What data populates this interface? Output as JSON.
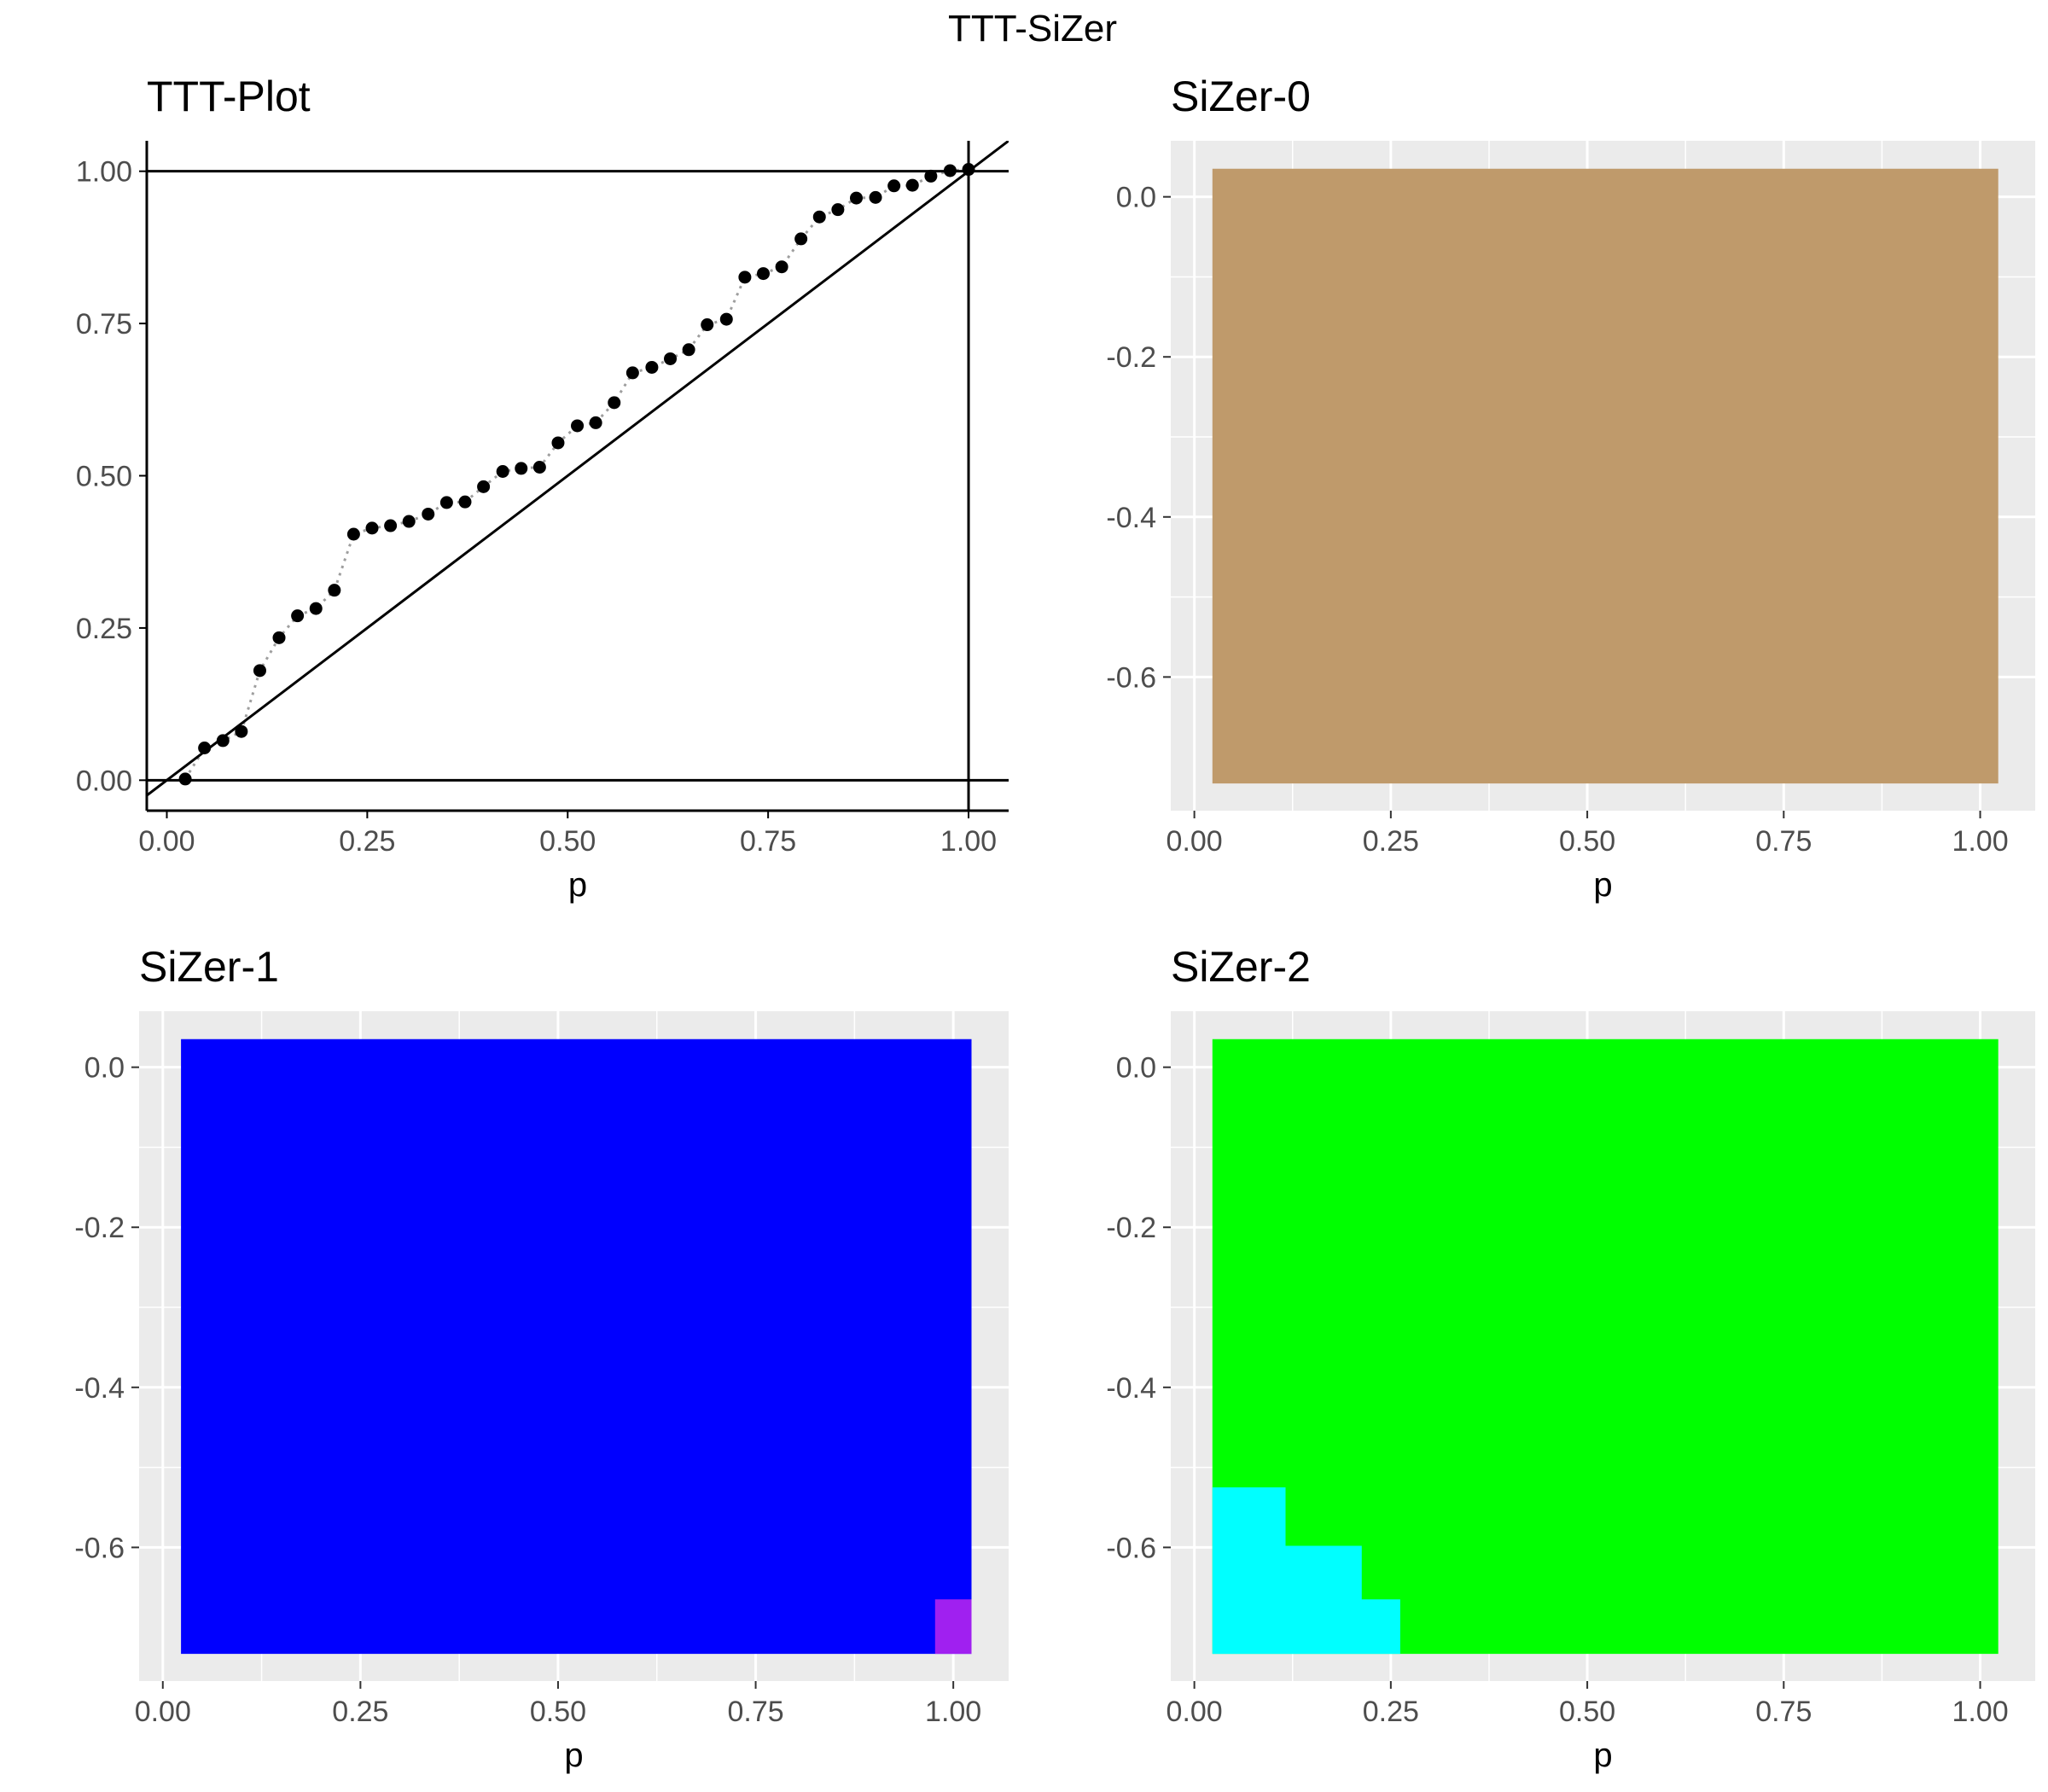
{
  "figure": {
    "title": "TTT-SiZer"
  },
  "colors": {
    "panel_bg": "#ebebeb",
    "grid": "#ffffff",
    "sizer0_fill": "#bf9a6b",
    "sizer1_fill": "#0000ff",
    "sizer1_accent": "#a020f0",
    "sizer2_fill": "#00ff00",
    "sizer2_accent": "#00ffff"
  },
  "chart_data": [
    {
      "id": "ttt",
      "type": "scatter",
      "title": "TTT-Plot",
      "xlabel": "p",
      "ylabel": "",
      "xlim": [
        -0.025,
        1.05
      ],
      "ylim": [
        -0.05,
        1.05
      ],
      "xticks": [
        0,
        0.25,
        0.5,
        0.75,
        1
      ],
      "xtick_labels": [
        "0.00",
        "0.25",
        "0.50",
        "0.75",
        "1.00"
      ],
      "yticks": [
        0,
        0.25,
        0.5,
        0.75,
        1
      ],
      "ytick_labels": [
        "0.00",
        "0.25",
        "0.50",
        "0.75",
        "1.00"
      ],
      "grid": false,
      "reference_lines": {
        "hlines": [
          0,
          1
        ],
        "vlines": [
          1
        ],
        "diagonal": [
          [
            0,
            0
          ],
          [
            1,
            1
          ]
        ]
      },
      "points": [
        [
          0.023,
          0.002
        ],
        [
          0.047,
          0.053
        ],
        [
          0.07,
          0.065
        ],
        [
          0.093,
          0.08
        ],
        [
          0.116,
          0.18
        ],
        [
          0.14,
          0.234
        ],
        [
          0.163,
          0.27
        ],
        [
          0.186,
          0.282
        ],
        [
          0.209,
          0.312
        ],
        [
          0.233,
          0.404
        ],
        [
          0.256,
          0.414
        ],
        [
          0.279,
          0.418
        ],
        [
          0.302,
          0.425
        ],
        [
          0.326,
          0.437
        ],
        [
          0.349,
          0.456
        ],
        [
          0.372,
          0.457
        ],
        [
          0.395,
          0.482
        ],
        [
          0.419,
          0.507
        ],
        [
          0.442,
          0.512
        ],
        [
          0.465,
          0.514
        ],
        [
          0.488,
          0.554
        ],
        [
          0.512,
          0.582
        ],
        [
          0.535,
          0.587
        ],
        [
          0.558,
          0.62
        ],
        [
          0.581,
          0.669
        ],
        [
          0.605,
          0.678
        ],
        [
          0.628,
          0.692
        ],
        [
          0.651,
          0.707
        ],
        [
          0.674,
          0.748
        ],
        [
          0.698,
          0.757
        ],
        [
          0.721,
          0.826
        ],
        [
          0.744,
          0.832
        ],
        [
          0.767,
          0.843
        ],
        [
          0.791,
          0.889
        ],
        [
          0.814,
          0.925
        ],
        [
          0.837,
          0.937
        ],
        [
          0.86,
          0.956
        ],
        [
          0.884,
          0.957
        ],
        [
          0.907,
          0.976
        ],
        [
          0.93,
          0.977
        ],
        [
          0.953,
          0.992
        ],
        [
          0.977,
          1.001
        ],
        [
          1.0,
          1.003
        ]
      ]
    },
    {
      "id": "sizer0",
      "type": "heatmap",
      "title": "SiZer-0",
      "xlabel": "p",
      "ylabel": "",
      "xlim": [
        -0.03,
        1.07
      ],
      "ylim": [
        -0.767,
        0.07
      ],
      "xticks": [
        0,
        0.25,
        0.5,
        0.75,
        1
      ],
      "xtick_labels": [
        "0.00",
        "0.25",
        "0.50",
        "0.75",
        "1.00"
      ],
      "yticks": [
        0,
        -0.2,
        -0.4,
        -0.6
      ],
      "ytick_labels": [
        "0.0",
        "-0.2",
        "-0.4",
        "-0.6"
      ],
      "grid": true,
      "extent": {
        "x": [
          0.023,
          1.023
        ],
        "y": [
          -0.733,
          0.035
        ]
      },
      "regions": [
        {
          "color_key": "sizer0_fill",
          "polygon": [
            [
              0.023,
              -0.733
            ],
            [
              1.023,
              -0.733
            ],
            [
              1.023,
              0.035
            ],
            [
              0.023,
              0.035
            ]
          ]
        }
      ]
    },
    {
      "id": "sizer1",
      "type": "heatmap",
      "title": "SiZer-1",
      "xlabel": "p",
      "ylabel": "",
      "xlim": [
        -0.03,
        1.07
      ],
      "ylim": [
        -0.767,
        0.07
      ],
      "xticks": [
        0,
        0.25,
        0.5,
        0.75,
        1
      ],
      "xtick_labels": [
        "0.00",
        "0.25",
        "0.50",
        "0.75",
        "1.00"
      ],
      "yticks": [
        0,
        -0.2,
        -0.4,
        -0.6
      ],
      "ytick_labels": [
        "0.0",
        "-0.2",
        "-0.4",
        "-0.6"
      ],
      "grid": true,
      "extent": {
        "x": [
          0.023,
          1.023
        ],
        "y": [
          -0.733,
          0.035
        ]
      },
      "regions": [
        {
          "color_key": "sizer1_fill",
          "polygon": [
            [
              0.023,
              -0.733
            ],
            [
              1.023,
              -0.733
            ],
            [
              1.023,
              0.035
            ],
            [
              0.023,
              0.035
            ]
          ]
        },
        {
          "color_key": "sizer1_accent",
          "polygon": [
            [
              0.977,
              -0.733
            ],
            [
              1.023,
              -0.733
            ],
            [
              1.023,
              -0.665
            ],
            [
              0.977,
              -0.665
            ]
          ]
        }
      ]
    },
    {
      "id": "sizer2",
      "type": "heatmap",
      "title": "SiZer-2",
      "xlabel": "p",
      "ylabel": "",
      "xlim": [
        -0.03,
        1.07
      ],
      "ylim": [
        -0.767,
        0.07
      ],
      "xticks": [
        0,
        0.25,
        0.5,
        0.75,
        1
      ],
      "xtick_labels": [
        "0.00",
        "0.25",
        "0.50",
        "0.75",
        "1.00"
      ],
      "yticks": [
        0,
        -0.2,
        -0.4,
        -0.6
      ],
      "ytick_labels": [
        "0.0",
        "-0.2",
        "-0.4",
        "-0.6"
      ],
      "grid": true,
      "extent": {
        "x": [
          0.023,
          1.023
        ],
        "y": [
          -0.733,
          0.035
        ]
      },
      "regions": [
        {
          "color_key": "sizer2_fill",
          "polygon": [
            [
              0.023,
              -0.733
            ],
            [
              1.023,
              -0.733
            ],
            [
              1.023,
              0.035
            ],
            [
              0.023,
              0.035
            ]
          ]
        },
        {
          "color_key": "sizer2_accent",
          "polygon": [
            [
              0.023,
              -0.733
            ],
            [
              0.262,
              -0.733
            ],
            [
              0.262,
              -0.665
            ],
            [
              0.213,
              -0.665
            ],
            [
              0.213,
              -0.598
            ],
            [
              0.116,
              -0.598
            ],
            [
              0.116,
              -0.525
            ],
            [
              0.023,
              -0.525
            ]
          ]
        }
      ]
    }
  ]
}
